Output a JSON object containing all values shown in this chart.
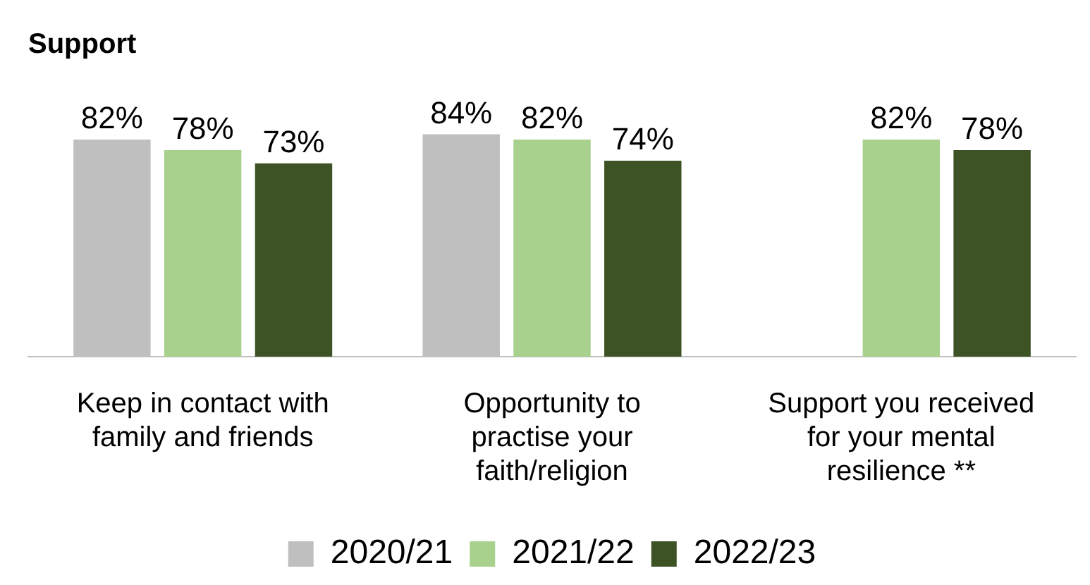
{
  "chart_data": {
    "type": "bar",
    "title": "Support",
    "legend": "bottom",
    "grid": false,
    "categories": [
      "Keep in contact with family and friends",
      "Opportunity to practise your faith/religion",
      "Support you received for your mental resilience **"
    ],
    "series": [
      {
        "name": "2020/21",
        "color": "#bfbfbf",
        "values": [
          82,
          84,
          null
        ],
        "value_labels": [
          "82%",
          "84%",
          null
        ]
      },
      {
        "name": "2021/22",
        "color": "#a9d18e",
        "values": [
          78,
          82,
          82
        ],
        "value_labels": [
          "78%",
          "82%",
          "82%"
        ]
      },
      {
        "name": "2022/23",
        "color": "#3d5325",
        "values": [
          73,
          74,
          78
        ],
        "value_labels": [
          "73%",
          "74%",
          "78%"
        ]
      }
    ]
  }
}
